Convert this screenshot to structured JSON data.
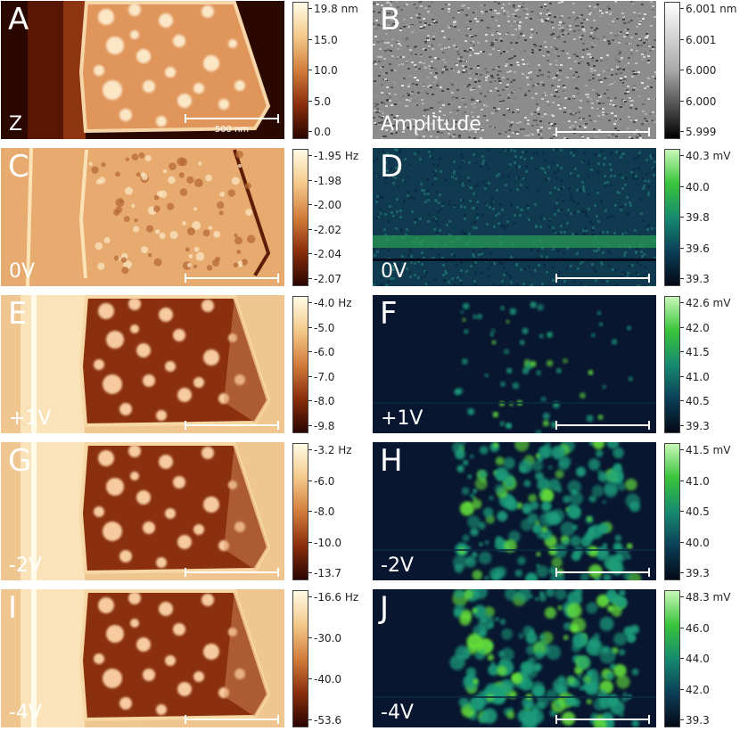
{
  "panels": [
    {
      "id": "A",
      "label": "A",
      "sublabel": "Z",
      "style": "topo",
      "scale_text": "500 nm",
      "colorbar": {
        "theme": "copper",
        "ticks": [
          "19.8 nm",
          "15.0",
          "10.0",
          "5.0",
          "0.0"
        ]
      }
    },
    {
      "id": "B",
      "label": "B",
      "sublabel": "Amplitude",
      "style": "noise",
      "colorbar": {
        "theme": "gray",
        "ticks": [
          "6.001 nm",
          "6.001",
          "6.000",
          "6.000",
          "5.999"
        ]
      }
    },
    {
      "id": "C",
      "label": "C",
      "sublabel": "0V",
      "style": "edges",
      "colorbar": {
        "theme": "copper",
        "ticks": [
          "-1.95 Hz",
          "-1.98",
          "-2.00",
          "-2.02",
          "-2.04",
          "-2.07"
        ]
      }
    },
    {
      "id": "D",
      "label": "D",
      "sublabel": "0V",
      "style": "green0",
      "colorbar": {
        "theme": "viridis",
        "ticks": [
          "40.3 mV",
          "40.0",
          "39.8",
          "39.6",
          "39.3"
        ]
      }
    },
    {
      "id": "E",
      "label": "E",
      "sublabel": "+1V",
      "style": "freq",
      "colorbar": {
        "theme": "copper",
        "ticks": [
          "-4.0 Hz",
          "-5.0",
          "-6.0",
          "-7.0",
          "-8.0",
          "-9.8"
        ]
      }
    },
    {
      "id": "F",
      "label": "F",
      "sublabel": "+1V",
      "style": "green1",
      "colorbar": {
        "theme": "viridis",
        "ticks": [
          "42.6 mV",
          "42.0",
          "41.5",
          "41.0",
          "40.5",
          "39.3"
        ]
      }
    },
    {
      "id": "G",
      "label": "G",
      "sublabel": "-2V",
      "style": "freq",
      "colorbar": {
        "theme": "copper",
        "ticks": [
          "-3.2 Hz",
          "-6.0",
          "-8.0",
          "-10.0",
          "-13.7"
        ]
      }
    },
    {
      "id": "H",
      "label": "H",
      "sublabel": "-2V",
      "style": "green2",
      "colorbar": {
        "theme": "viridis",
        "ticks": [
          "41.5 mV",
          "41.0",
          "40.5",
          "40.0",
          "39.3"
        ]
      }
    },
    {
      "id": "I",
      "label": "I",
      "sublabel": "-4V",
      "style": "freq",
      "colorbar": {
        "theme": "copper",
        "ticks": [
          "-16.6 Hz",
          "-30.0",
          "-40.0",
          "-53.6"
        ]
      }
    },
    {
      "id": "J",
      "label": "J",
      "sublabel": "-4V",
      "style": "green4",
      "colorbar": {
        "theme": "viridis",
        "ticks": [
          "48.3 mV",
          "46.0",
          "44.0",
          "42.0",
          "39.3"
        ]
      }
    }
  ]
}
